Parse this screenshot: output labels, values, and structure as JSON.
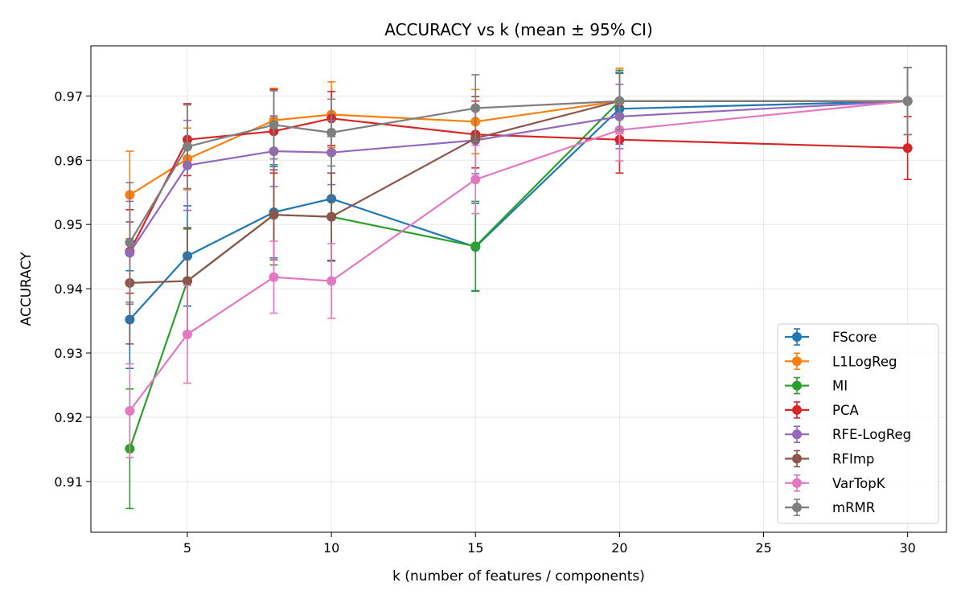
{
  "chart_data": {
    "type": "line",
    "title": "ACCURACY vs k (mean ± 95% CI)",
    "xlabel": "k (number of features / components)",
    "ylabel": "ACCURACY",
    "xlim": [
      1.65,
      31.35
    ],
    "ylim": [
      0.9021,
      0.9778
    ],
    "xticks": [
      5,
      10,
      15,
      20,
      25,
      30
    ],
    "xtick_labels": [
      "5",
      "10",
      "15",
      "20",
      "25",
      "30"
    ],
    "yticks": [
      0.91,
      0.92,
      0.93,
      0.94,
      0.95,
      0.96,
      0.97
    ],
    "ytick_labels": [
      "0.91",
      "0.92",
      "0.93",
      "0.94",
      "0.95",
      "0.96",
      "0.97"
    ],
    "grid": true,
    "legend_position": "lower-right",
    "series": [
      {
        "name": "FScore",
        "color": "#1f77b4",
        "x": [
          3,
          5,
          8,
          10,
          15,
          20,
          30
        ],
        "y": [
          0.9352,
          0.9451,
          0.9519,
          0.954,
          0.9465,
          0.968,
          0.9692
        ],
        "err": [
          0.0076,
          0.0078,
          0.0071,
          0.0097,
          0.0068,
          0.0055,
          0.0052
        ]
      },
      {
        "name": "L1LogReg",
        "color": "#ff7f0e",
        "x": [
          3,
          5,
          8,
          10,
          15,
          20,
          30
        ],
        "y": [
          0.9546,
          0.9602,
          0.9662,
          0.9671,
          0.966,
          0.9692,
          0.9692
        ],
        "err": [
          0.0068,
          0.0048,
          0.005,
          0.0051,
          0.005,
          0.0051,
          0.0052
        ]
      },
      {
        "name": "MI",
        "color": "#2ca02c",
        "x": [
          3,
          5,
          8,
          10,
          15,
          20,
          30
        ],
        "y": [
          0.9151,
          0.9412,
          0.9515,
          0.9512,
          0.9466,
          0.9692,
          0.9692
        ],
        "err": [
          0.0093,
          0.0081,
          0.0078,
          0.0068,
          0.007,
          0.0048,
          0.0052
        ]
      },
      {
        "name": "PCA",
        "color": "#d62728",
        "x": [
          3,
          5,
          8,
          10,
          15,
          20,
          30
        ],
        "y": [
          0.9458,
          0.9632,
          0.9645,
          0.9665,
          0.964,
          0.9632,
          0.9619
        ],
        "err": [
          0.0065,
          0.0056,
          0.0065,
          0.0042,
          0.0052,
          0.0052,
          0.0049
        ]
      },
      {
        "name": "RFE-LogReg",
        "color": "#9467bd",
        "x": [
          3,
          5,
          8,
          10,
          15,
          20,
          30
        ],
        "y": [
          0.9456,
          0.9592,
          0.9614,
          0.9612,
          0.9631,
          0.9668,
          0.9692
        ],
        "err": [
          0.008,
          0.007,
          0.0055,
          0.005,
          0.0052,
          0.005,
          0.0052
        ]
      },
      {
        "name": "RFImp",
        "color": "#8c564b",
        "x": [
          3,
          5,
          8,
          10,
          15,
          20,
          30
        ],
        "y": [
          0.9409,
          0.9412,
          0.9515,
          0.9512,
          0.9634,
          0.9692,
          0.9692
        ],
        "err": [
          0.0095,
          0.0083,
          0.007,
          0.0068,
          0.0065,
          0.0045,
          0.0052
        ]
      },
      {
        "name": "VarTopK",
        "color": "#e377c2",
        "x": [
          3,
          5,
          8,
          10,
          15,
          20,
          30
        ],
        "y": [
          0.921,
          0.9329,
          0.9418,
          0.9412,
          0.957,
          0.9647,
          0.9692
        ],
        "err": [
          0.0073,
          0.0076,
          0.0056,
          0.0058,
          0.0053,
          0.0048,
          0.0052
        ]
      },
      {
        "name": "mRMR",
        "color": "#7f7f7f",
        "x": [
          3,
          5,
          8,
          10,
          15,
          20,
          30
        ],
        "y": [
          0.9472,
          0.9621,
          0.9655,
          0.9643,
          0.9681,
          0.9692,
          0.9692
        ],
        "err": [
          0.0093,
          0.0065,
          0.0053,
          0.0052,
          0.0052,
          0.0045,
          0.0052
        ]
      }
    ]
  }
}
